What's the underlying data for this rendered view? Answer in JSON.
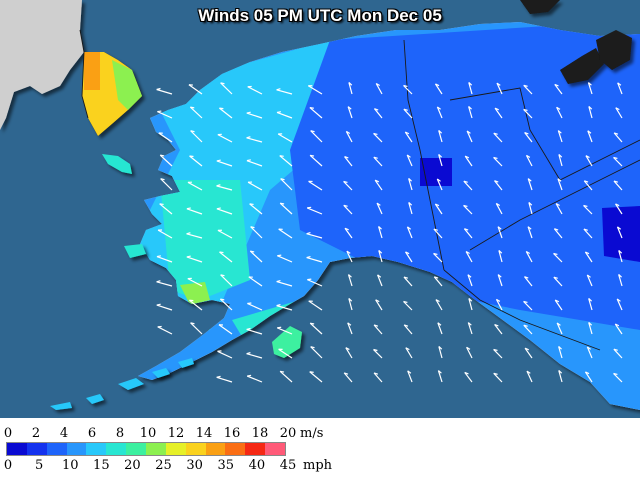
{
  "map": {
    "title": "Winds 05 PM UTC Mon Dec 05",
    "ocean_color": "#2f6690",
    "land_color": "#cfcfcf",
    "border_color": "#1a1a1a",
    "wind_arrow_color": "#ffffff"
  },
  "legend": {
    "ms_unit": "m/s",
    "mph_unit": "mph",
    "ms_ticks": [
      "0",
      "2",
      "4",
      "6",
      "8",
      "10",
      "12",
      "14",
      "16",
      "18",
      "20"
    ],
    "mph_ticks": [
      "0",
      "5",
      "10",
      "15",
      "20",
      "25",
      "30",
      "35",
      "40",
      "45"
    ],
    "colors": [
      "#0a0ad2",
      "#1432ee",
      "#1e64fa",
      "#2896fc",
      "#28c8fa",
      "#28e6d2",
      "#3cf0a0",
      "#8cf050",
      "#e6f028",
      "#fad21e",
      "#faa014",
      "#fa6e14",
      "#f52814",
      "#ff5a78"
    ]
  }
}
